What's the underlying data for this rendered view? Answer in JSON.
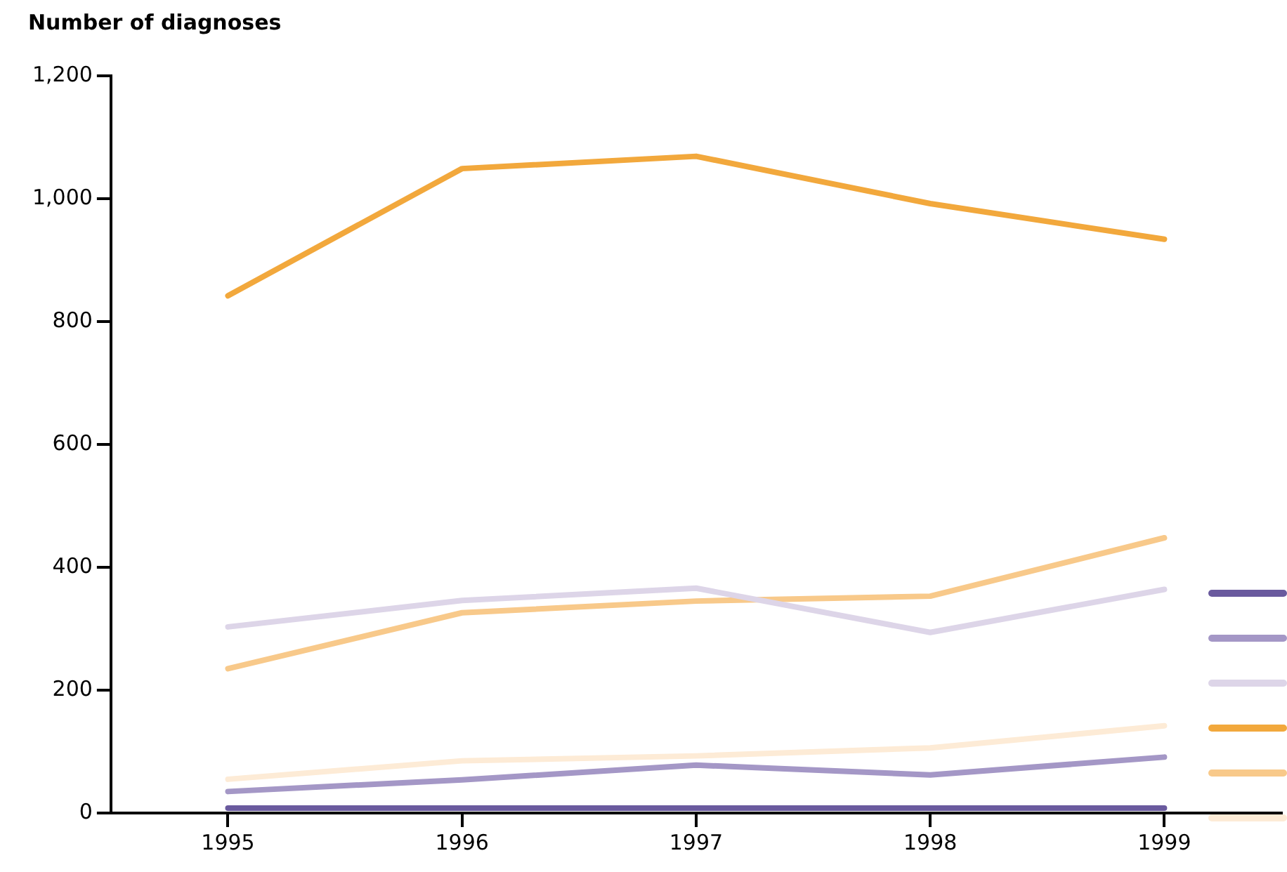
{
  "chart_data": {
    "type": "line",
    "ylabel": "Number of diagnoses",
    "categories": [
      "1995",
      "1996",
      "1997",
      "1998",
      "1999"
    ],
    "series": [
      {
        "color": "#6a5a9e",
        "values": [
          8,
          8,
          8,
          8,
          8
        ]
      },
      {
        "color": "#a497c6",
        "values": [
          35,
          54,
          78,
          62,
          91
        ]
      },
      {
        "color": "#ddd5e8",
        "values": [
          303,
          346,
          366,
          294,
          364
        ]
      },
      {
        "color": "#f2a83c",
        "values": [
          842,
          1049,
          1069,
          992,
          934
        ]
      },
      {
        "color": "#f8c98a",
        "values": [
          235,
          326,
          345,
          353,
          448
        ]
      },
      {
        "color": "#fdebd6",
        "values": [
          55,
          85,
          93,
          106,
          142
        ]
      }
    ],
    "ylim": [
      0,
      1200
    ],
    "yticks": [
      0,
      200,
      400,
      600,
      800,
      {
        "value": 1000,
        "label": "1,000"
      },
      {
        "value": 1200,
        "label": "1,200"
      }
    ],
    "grid": false,
    "marker": "none",
    "line_style": "solid"
  }
}
